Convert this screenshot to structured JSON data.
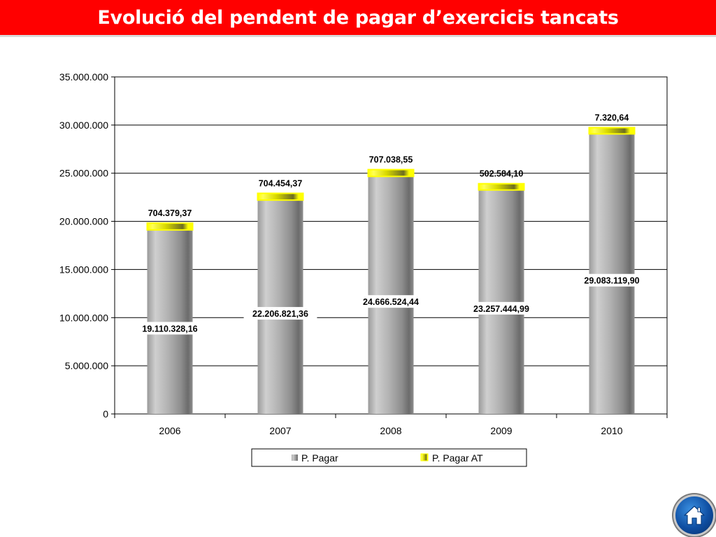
{
  "slide": {
    "title": "Evolució del pendent de pagar d’exercicis tancats"
  },
  "colors": {
    "title_bar": "#ff0000",
    "title_text": "#ffffff",
    "series_pagar": "#a6a6a6",
    "series_pagar_at": "#ffff00",
    "home_button": "#1560bd"
  },
  "home_button": {
    "icon": "home-icon"
  },
  "chart_data": {
    "type": "bar",
    "stacked": true,
    "title": "",
    "xlabel": "",
    "ylabel": "",
    "categories": [
      "2006",
      "2007",
      "2008",
      "2009",
      "2010"
    ],
    "ylim": [
      0,
      35000000
    ],
    "yticks": [
      0,
      5000000,
      10000000,
      15000000,
      20000000,
      25000000,
      30000000,
      35000000
    ],
    "ytick_labels": [
      "0",
      "5.000.000",
      "10.000.000",
      "15.000.000",
      "20.000.000",
      "25.000.000",
      "30.000.000",
      "35.000.000"
    ],
    "grid": true,
    "legend": "bottom",
    "series": [
      {
        "name": "P. Pagar",
        "values": [
          19110328.16,
          22206821.36,
          24666524.44,
          23257444.99,
          29083119.9
        ],
        "labels": [
          "19.110.328,16",
          "22.206.821,36",
          "24.666.524,44",
          "23.257.444,99",
          "29.083.119,90"
        ]
      },
      {
        "name": "P. Pagar AT",
        "values": [
          704379.37,
          704454.37,
          707038.55,
          502584.1,
          7320.64
        ],
        "labels": [
          "704.379,37",
          "704.454,37",
          "707.038,55",
          "502.584,10",
          "7.320,64"
        ]
      }
    ]
  }
}
